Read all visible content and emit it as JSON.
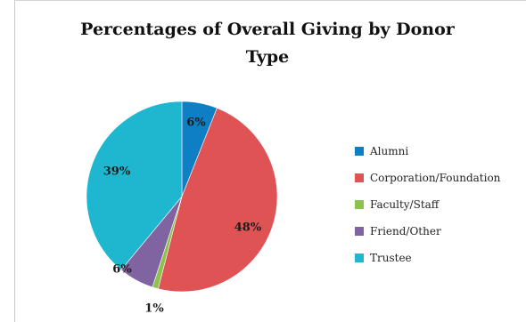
{
  "chart_data": {
    "type": "pie",
    "title_line1": "Percentages of Overall Giving by Donor",
    "title_line2": "Type",
    "legend_position": "right",
    "slices": [
      {
        "name": "Alumni",
        "value": 6,
        "label": "6%",
        "color": "#0f7fc5"
      },
      {
        "name": "Corporation/Foundation",
        "value": 48,
        "label": "48%",
        "color": "#e05355"
      },
      {
        "name": "Faculty/Staff",
        "value": 1,
        "label": "1%",
        "color": "#8dc24c"
      },
      {
        "name": "Friend/Other",
        "value": 6,
        "label": "6%",
        "color": "#8064a2"
      },
      {
        "name": "Trustee",
        "value": 39,
        "label": "39%",
        "color": "#1fb6cf"
      }
    ]
  }
}
